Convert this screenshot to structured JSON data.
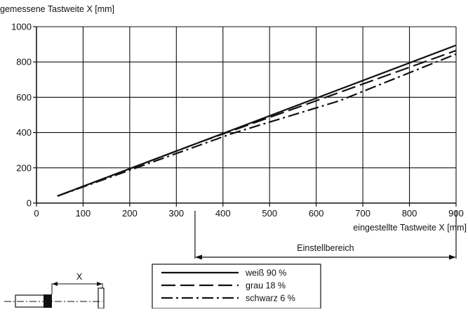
{
  "chart_data": {
    "type": "line",
    "ylabel": "gemessene Tastweite X [mm]",
    "xlabel": "eingestellte Tastweite X [mm]",
    "xlim": [
      0,
      900
    ],
    "ylim": [
      0,
      1000
    ],
    "x_ticks": [
      0,
      100,
      200,
      300,
      400,
      500,
      600,
      700,
      800,
      900
    ],
    "y_ticks": [
      0,
      200,
      400,
      600,
      800,
      1000
    ],
    "grid": true,
    "legend_position": "bottom-center",
    "series": [
      {
        "name": "weiß 90 %",
        "line_style": "solid",
        "x": [
          45,
          900
        ],
        "y": [
          40,
          895
        ]
      },
      {
        "name": "grau 18 %",
        "line_style": "dashed",
        "x": [
          45,
          350,
          600,
          900
        ],
        "y": [
          40,
          345,
          580,
          865
        ]
      },
      {
        "name": "schwarz 6 %",
        "line_style": "dash-dot",
        "x": [
          45,
          420,
          650,
          900
        ],
        "y": [
          40,
          395,
          580,
          845
        ]
      }
    ],
    "annotations": {
      "range_label": "Einstellbereich",
      "range_start": 340,
      "range_end": 900,
      "sensor_distance_label": "X"
    }
  }
}
